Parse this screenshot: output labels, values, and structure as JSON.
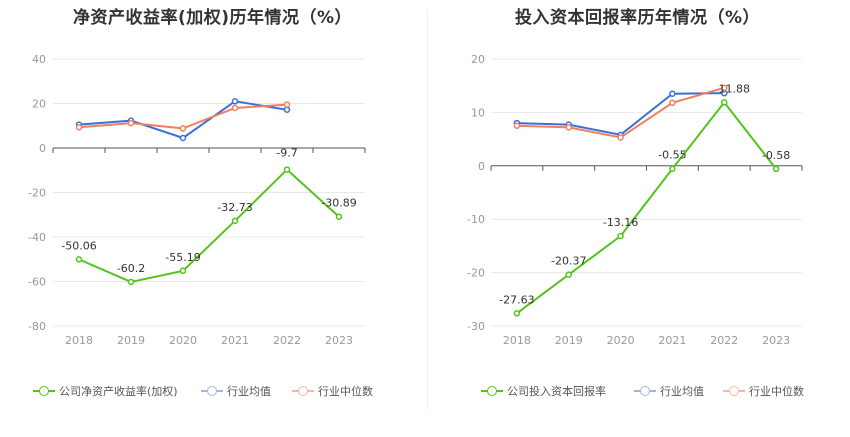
{
  "colors": {
    "company": "#52c41a",
    "avg": "#3b6fd8",
    "median": "#f0805a",
    "company_legend": "#52c41a",
    "avg_legend": "#9db5ec",
    "median_legend": "#f6b8a0"
  },
  "chart_data": [
    {
      "type": "line",
      "title": "净资产收益率(加权)历年情况（%）",
      "categories": [
        "2018",
        "2019",
        "2020",
        "2021",
        "2022",
        "2023"
      ],
      "ylim": [
        -80,
        40
      ],
      "yticks": [
        40,
        20,
        0,
        -20,
        -40,
        -60,
        -80
      ],
      "series": [
        {
          "name": "公司净资产收益率(加权)",
          "key": "company",
          "values": [
            -50.06,
            -60.2,
            -55.19,
            -32.73,
            -9.7,
            -30.89
          ],
          "labels": [
            "-50.06",
            "-60.2",
            "-55.19",
            "-32.73",
            "-9.7",
            "-30.89"
          ]
        },
        {
          "name": "行业均值",
          "key": "avg",
          "values": [
            10.5,
            12.3,
            4.5,
            21.0,
            17.2,
            null
          ]
        },
        {
          "name": "行业中位数",
          "key": "median",
          "values": [
            9.3,
            11.2,
            8.8,
            18.0,
            19.5,
            null
          ]
        }
      ]
    },
    {
      "type": "line",
      "title": "投入资本回报率历年情况（%）",
      "categories": [
        "2018",
        "2019",
        "2020",
        "2021",
        "2022",
        "2023"
      ],
      "ylim": [
        -30,
        20
      ],
      "yticks": [
        20,
        10,
        0,
        -10,
        -20,
        -30
      ],
      "series": [
        {
          "name": "公司投入资本回报率",
          "key": "company",
          "values": [
            -27.63,
            -20.37,
            -13.16,
            -0.55,
            11.88,
            -0.58
          ],
          "labels": [
            "-27.63",
            "-20.37",
            "-13.16",
            "-0.55",
            "11.88",
            "-0.58"
          ]
        },
        {
          "name": "行业均值",
          "key": "avg",
          "values": [
            8.0,
            7.7,
            5.8,
            13.5,
            13.6,
            null
          ]
        },
        {
          "name": "行业中位数",
          "key": "median",
          "values": [
            7.5,
            7.2,
            5.3,
            11.8,
            14.6,
            null
          ]
        }
      ]
    }
  ]
}
